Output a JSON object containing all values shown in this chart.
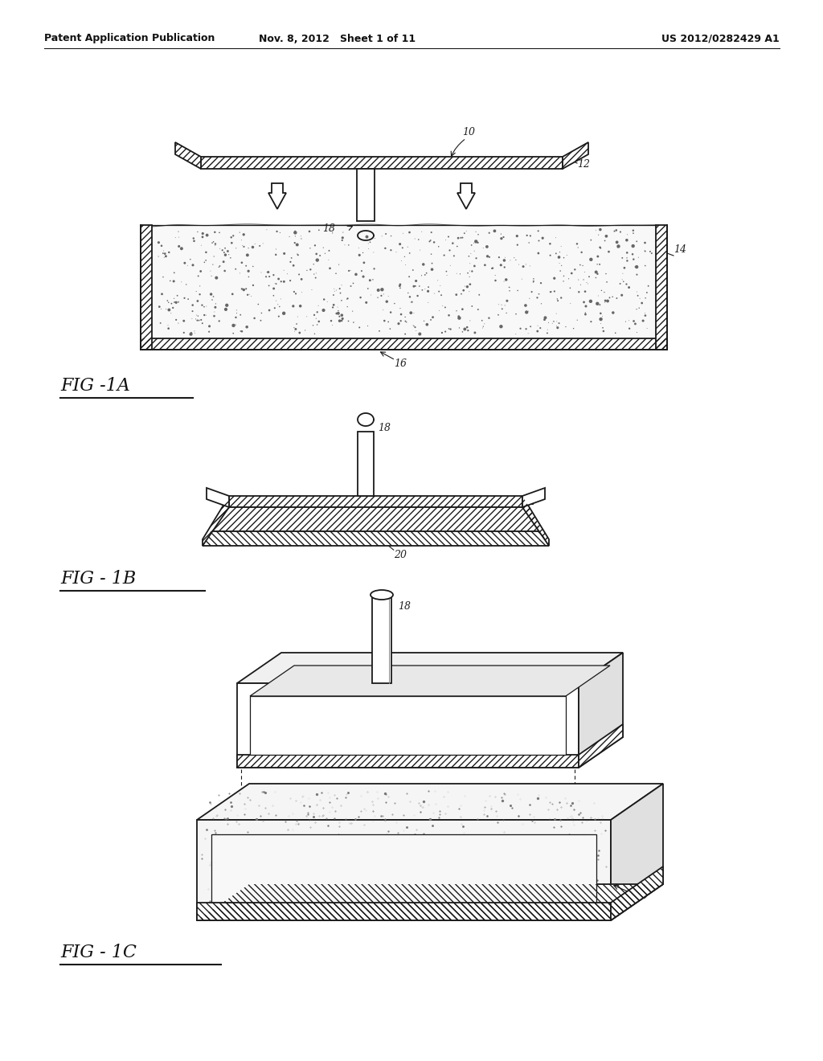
{
  "header_left": "Patent Application Publication",
  "header_mid": "Nov. 8, 2012   Sheet 1 of 11",
  "header_right": "US 2012/0282429 A1",
  "bg_color": "#ffffff",
  "line_color": "#1a1a1a",
  "fig1a_label": "FIG -1A",
  "fig1b_label": "FIG - 1B",
  "fig1c_label": "FIG - 1C"
}
